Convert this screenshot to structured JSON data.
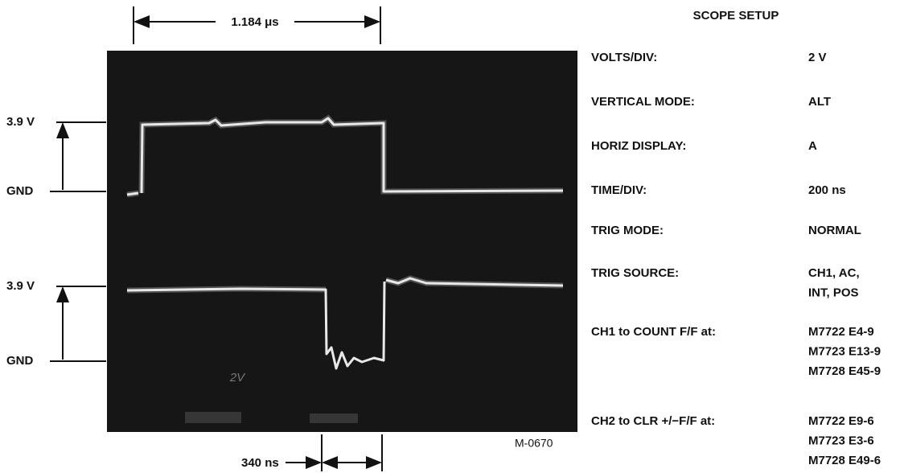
{
  "figure": {
    "period_label": "1.184 μs",
    "delay_label": "340 ns",
    "figure_id": "M-0670",
    "trace_label": "2V",
    "channel1": {
      "high_label": "3.9 V",
      "low_label": "GND"
    },
    "channel2": {
      "high_label": "3.9 V",
      "low_label": "GND"
    }
  },
  "setup": {
    "title": "SCOPE SETUP",
    "rows": [
      {
        "label": "VOLTS/DIV:",
        "value": [
          "2 V"
        ]
      },
      {
        "label": "VERTICAL MODE:",
        "value": [
          "ALT"
        ]
      },
      {
        "label": "HORIZ DISPLAY:",
        "value": [
          "A"
        ]
      },
      {
        "label": "TIME/DIV:",
        "value": [
          "200 ns"
        ]
      },
      {
        "label": "TRIG MODE:",
        "value": [
          "NORMAL"
        ]
      },
      {
        "label": "TRIG SOURCE:",
        "value": [
          "CH1, AC,",
          "INT, POS"
        ]
      },
      {
        "label": "CH1 to COUNT F/F at:",
        "value": [
          "M7722 E4-9",
          "M7723 E13-9",
          "M7728 E45-9"
        ]
      },
      {
        "label": "CH2 to CLR +/−F/F at:",
        "value": [
          "M7722 E9-6",
          "M7723 E3-6",
          "M7728 E49-6"
        ]
      }
    ]
  }
}
